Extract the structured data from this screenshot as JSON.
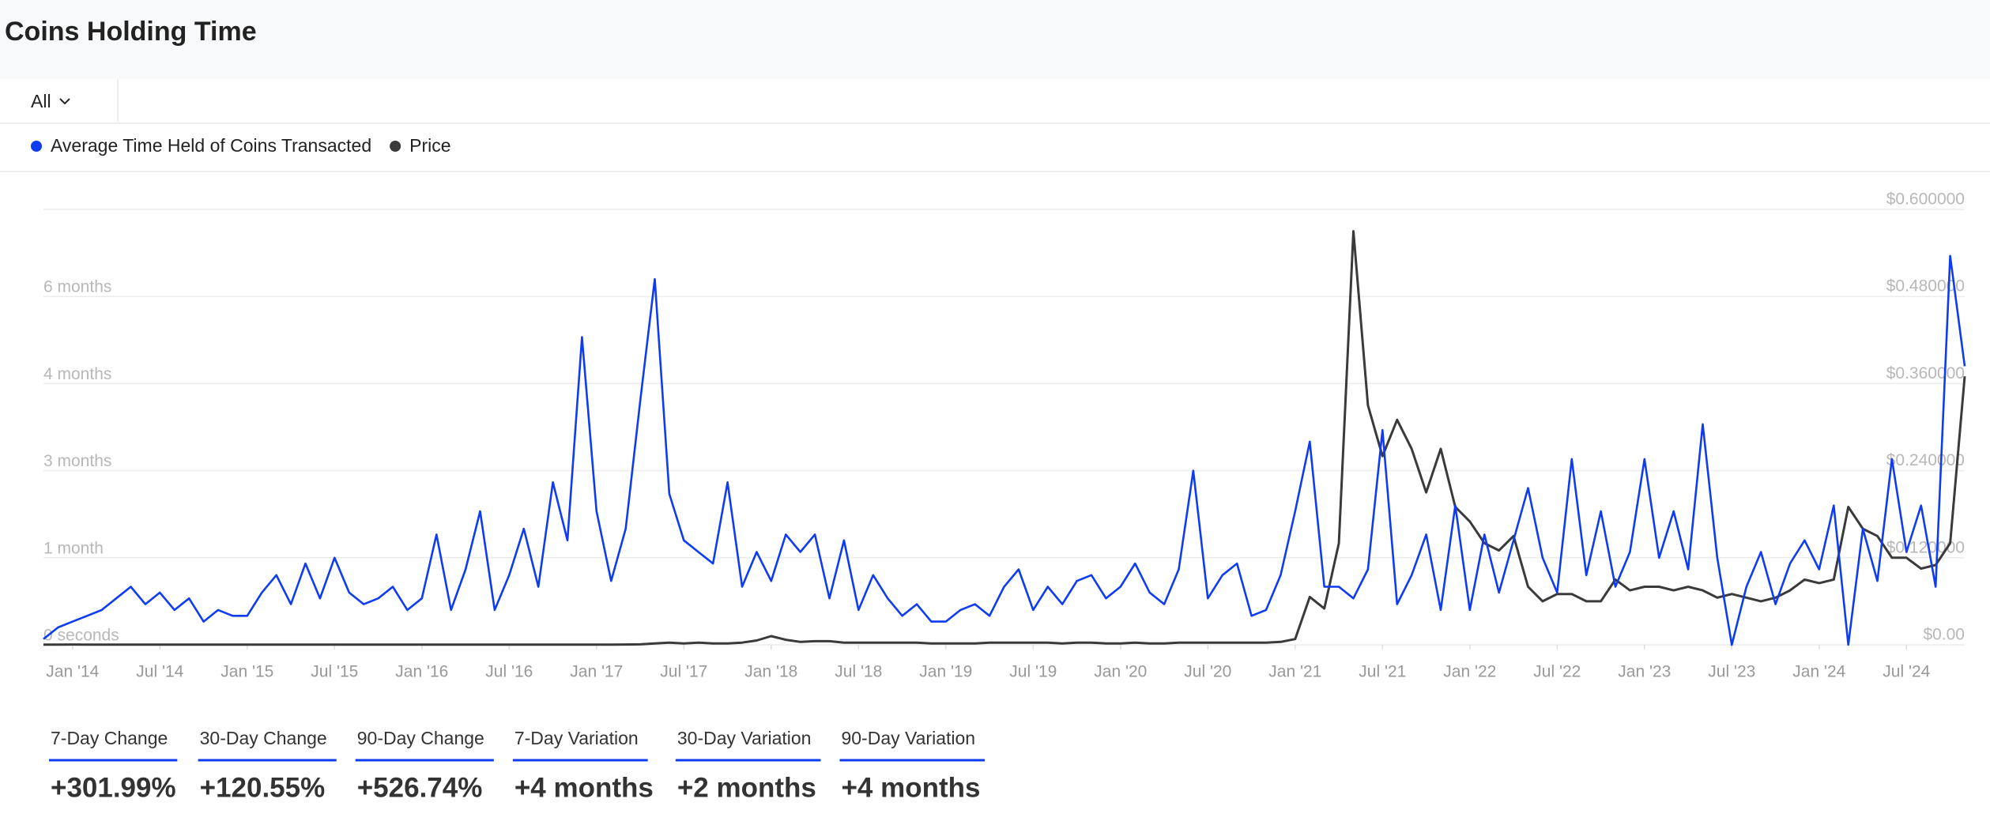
{
  "header": {
    "title": "Coins Holding Time"
  },
  "filter": {
    "value": "All"
  },
  "chart_data": {
    "type": "line",
    "x": [
      "2013-11",
      "2013-12",
      "2014-01",
      "2014-02",
      "2014-03",
      "2014-04",
      "2014-05",
      "2014-06",
      "2014-07",
      "2014-08",
      "2014-09",
      "2014-10",
      "2014-11",
      "2014-12",
      "2015-01",
      "2015-02",
      "2015-03",
      "2015-04",
      "2015-05",
      "2015-06",
      "2015-07",
      "2015-08",
      "2015-09",
      "2015-10",
      "2015-11",
      "2015-12",
      "2016-01",
      "2016-02",
      "2016-03",
      "2016-04",
      "2016-05",
      "2016-06",
      "2016-07",
      "2016-08",
      "2016-09",
      "2016-10",
      "2016-11",
      "2016-12",
      "2017-01",
      "2017-02",
      "2017-03",
      "2017-04",
      "2017-05",
      "2017-06",
      "2017-07",
      "2017-08",
      "2017-09",
      "2017-10",
      "2017-11",
      "2017-12",
      "2018-01",
      "2018-02",
      "2018-03",
      "2018-04",
      "2018-05",
      "2018-06",
      "2018-07",
      "2018-08",
      "2018-09",
      "2018-10",
      "2018-11",
      "2018-12",
      "2019-01",
      "2019-02",
      "2019-03",
      "2019-04",
      "2019-05",
      "2019-06",
      "2019-07",
      "2019-08",
      "2019-09",
      "2019-10",
      "2019-11",
      "2019-12",
      "2020-01",
      "2020-02",
      "2020-03",
      "2020-04",
      "2020-05",
      "2020-06",
      "2020-07",
      "2020-08",
      "2020-09",
      "2020-10",
      "2020-11",
      "2020-12",
      "2021-01",
      "2021-02",
      "2021-03",
      "2021-04",
      "2021-05",
      "2021-06",
      "2021-07",
      "2021-08",
      "2021-09",
      "2021-10",
      "2021-11",
      "2021-12",
      "2022-01",
      "2022-02",
      "2022-03",
      "2022-04",
      "2022-05",
      "2022-06",
      "2022-07",
      "2022-08",
      "2022-09",
      "2022-10",
      "2022-11",
      "2022-12",
      "2023-01",
      "2023-02",
      "2023-03",
      "2023-04",
      "2023-05",
      "2023-06",
      "2023-07",
      "2023-08",
      "2023-09",
      "2023-10",
      "2023-11",
      "2023-12",
      "2024-01",
      "2024-02",
      "2024-03",
      "2024-04",
      "2024-05",
      "2024-06",
      "2024-07",
      "2024-08",
      "2024-09",
      "2024-10",
      "2024-11"
    ],
    "series": [
      {
        "name": "Average Time Held of Coins Transacted",
        "color": "#0f3cf0",
        "values": [
          0.1,
          0.3,
          0.4,
          0.5,
          0.6,
          0.8,
          1.0,
          0.7,
          0.9,
          0.6,
          0.8,
          0.4,
          0.6,
          0.5,
          0.5,
          0.9,
          1.2,
          0.7,
          1.4,
          0.8,
          1.5,
          0.9,
          0.7,
          0.8,
          1.0,
          0.6,
          0.8,
          1.9,
          0.6,
          1.3,
          2.3,
          0.6,
          1.2,
          2.0,
          1.0,
          2.8,
          1.8,
          5.3,
          2.3,
          1.1,
          2.0,
          4.2,
          6.3,
          2.6,
          1.8,
          1.6,
          1.4,
          2.8,
          1.0,
          1.6,
          1.1,
          1.9,
          1.6,
          1.9,
          0.8,
          1.8,
          0.6,
          1.2,
          0.8,
          0.5,
          0.7,
          0.4,
          0.4,
          0.6,
          0.7,
          0.5,
          1.0,
          1.3,
          0.6,
          1.0,
          0.7,
          1.1,
          1.2,
          0.8,
          1.0,
          1.4,
          0.9,
          0.7,
          1.3,
          3.0,
          0.8,
          1.2,
          1.4,
          0.5,
          0.6,
          1.2,
          2.3,
          3.5,
          1.0,
          1.0,
          0.8,
          1.3,
          3.7,
          0.7,
          1.2,
          1.9,
          0.6,
          2.4,
          0.6,
          1.9,
          0.9,
          1.8,
          2.7,
          1.5,
          0.9,
          3.2,
          1.2,
          2.3,
          1.0,
          1.6,
          3.2,
          1.5,
          2.3,
          1.3,
          3.8,
          1.5,
          0.0,
          1.0,
          1.6,
          0.7,
          1.4,
          1.8,
          1.3,
          2.4,
          0.0,
          2.0,
          1.1,
          3.2,
          1.6,
          2.4,
          1.0,
          6.7,
          4.8
        ]
      },
      {
        "name": "Price",
        "color": "#3a3a3a",
        "axis": "y2",
        "values": [
          0.0003,
          0.0003,
          0.0004,
          0.0003,
          0.0003,
          0.0003,
          0.0003,
          0.0003,
          0.0003,
          0.0003,
          0.0002,
          0.0002,
          0.0002,
          0.0002,
          0.0002,
          0.0002,
          0.0002,
          0.0002,
          0.0002,
          0.0002,
          0.0002,
          0.0002,
          0.0002,
          0.0002,
          0.0002,
          0.0002,
          0.0002,
          0.0002,
          0.0003,
          0.0003,
          0.0003,
          0.0003,
          0.0003,
          0.0003,
          0.0003,
          0.0003,
          0.0003,
          0.0003,
          0.0003,
          0.0003,
          0.0004,
          0.0006,
          0.002,
          0.003,
          0.002,
          0.003,
          0.002,
          0.002,
          0.003,
          0.006,
          0.012,
          0.007,
          0.004,
          0.005,
          0.005,
          0.003,
          0.003,
          0.003,
          0.003,
          0.003,
          0.003,
          0.002,
          0.002,
          0.002,
          0.002,
          0.003,
          0.003,
          0.003,
          0.003,
          0.003,
          0.002,
          0.003,
          0.003,
          0.002,
          0.002,
          0.003,
          0.002,
          0.002,
          0.003,
          0.003,
          0.003,
          0.003,
          0.003,
          0.003,
          0.003,
          0.004,
          0.008,
          0.066,
          0.05,
          0.14,
          0.57,
          0.33,
          0.26,
          0.31,
          0.27,
          0.21,
          0.27,
          0.19,
          0.17,
          0.14,
          0.13,
          0.15,
          0.08,
          0.06,
          0.07,
          0.07,
          0.06,
          0.06,
          0.09,
          0.075,
          0.08,
          0.08,
          0.075,
          0.08,
          0.075,
          0.065,
          0.07,
          0.065,
          0.06,
          0.065,
          0.075,
          0.09,
          0.085,
          0.09,
          0.19,
          0.16,
          0.15,
          0.12,
          0.12,
          0.105,
          0.11,
          0.14,
          0.37
        ]
      }
    ],
    "xlim": [
      "2013-11",
      "2024-11"
    ],
    "xticks": [
      {
        "value": "2014-01",
        "label": "Jan '14"
      },
      {
        "value": "2014-07",
        "label": "Jul '14"
      },
      {
        "value": "2015-01",
        "label": "Jan '15"
      },
      {
        "value": "2015-07",
        "label": "Jul '15"
      },
      {
        "value": "2016-01",
        "label": "Jan '16"
      },
      {
        "value": "2016-07",
        "label": "Jul '16"
      },
      {
        "value": "2017-01",
        "label": "Jan '17"
      },
      {
        "value": "2017-07",
        "label": "Jul '17"
      },
      {
        "value": "2018-01",
        "label": "Jan '18"
      },
      {
        "value": "2018-07",
        "label": "Jul '18"
      },
      {
        "value": "2019-01",
        "label": "Jan '19"
      },
      {
        "value": "2019-07",
        "label": "Jul '19"
      },
      {
        "value": "2020-01",
        "label": "Jan '20"
      },
      {
        "value": "2020-07",
        "label": "Jul '20"
      },
      {
        "value": "2021-01",
        "label": "Jan '21"
      },
      {
        "value": "2021-07",
        "label": "Jul '21"
      },
      {
        "value": "2022-01",
        "label": "Jan '22"
      },
      {
        "value": "2022-07",
        "label": "Jul '22"
      },
      {
        "value": "2023-01",
        "label": "Jan '23"
      },
      {
        "value": "2023-07",
        "label": "Jul '23"
      },
      {
        "value": "2024-01",
        "label": "Jan '24"
      },
      {
        "value": "2024-07",
        "label": "Jul '24"
      }
    ],
    "ylim": [
      0,
      7.5
    ],
    "yticks": [
      {
        "value": 0,
        "label": "0 seconds"
      },
      {
        "value": 1.5,
        "label": "1 month"
      },
      {
        "value": 3,
        "label": "3 months"
      },
      {
        "value": 4.5,
        "label": "4 months"
      },
      {
        "value": 6,
        "label": "6 months"
      }
    ],
    "y2lim": [
      0,
      0.6
    ],
    "y2ticks": [
      {
        "value": 0,
        "label": "$0.00"
      },
      {
        "value": 0.12,
        "label": "$0.120000"
      },
      {
        "value": 0.24,
        "label": "$0.240000"
      },
      {
        "value": 0.36,
        "label": "$0.360000"
      },
      {
        "value": 0.48,
        "label": "$0.480000"
      },
      {
        "value": 0.6,
        "label": "$0.600000"
      }
    ],
    "grid": true
  },
  "stats": [
    {
      "label": "7-Day Change",
      "value": "+301.99%"
    },
    {
      "label": "30-Day Change",
      "value": "+120.55%"
    },
    {
      "label": "90-Day Change",
      "value": "+526.74%"
    },
    {
      "label": "7-Day Variation",
      "value": "+4 months"
    },
    {
      "label": "30-Day Variation",
      "value": "+2 months"
    },
    {
      "label": "90-Day Variation",
      "value": "+4 months"
    }
  ]
}
